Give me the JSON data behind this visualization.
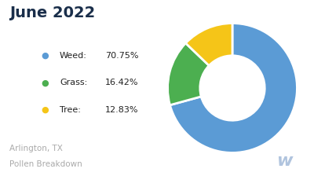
{
  "title": "June 2022",
  "title_color": "#1a2e4a",
  "title_fontsize": 14,
  "title_fontweight": "bold",
  "labels": [
    "Weed",
    "Grass",
    "Tree"
  ],
  "values": [
    70.75,
    16.42,
    12.83
  ],
  "colors": [
    "#5b9bd5",
    "#4caf50",
    "#f5c518"
  ],
  "legend_names": [
    "Weed:",
    "Grass:",
    "Tree:"
  ],
  "legend_pcts": [
    "70.75%",
    "16.42%",
    "12.83%"
  ],
  "legend_dot_colors": [
    "#5b9bd5",
    "#4caf50",
    "#f5c518"
  ],
  "footer_line1": "Arlington, TX",
  "footer_line2": "Pollen Breakdown",
  "footer_color": "#aaaaaa",
  "footer_fontsize": 7.5,
  "background_color": "#ffffff",
  "watermark": "w",
  "watermark_color": "#b0c4de"
}
